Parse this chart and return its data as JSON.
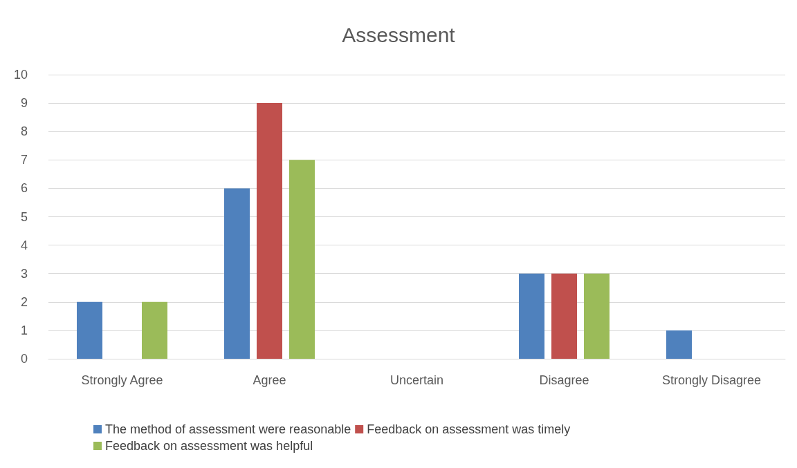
{
  "chart_data": {
    "type": "bar",
    "title": "Assessment",
    "categories": [
      "Strongly Agree",
      "Agree",
      "Uncertain",
      "Disagree",
      "Strongly Disagree"
    ],
    "series": [
      {
        "name": "The method of assessment were reasonable",
        "color": "#4f81bd",
        "values": [
          2,
          6,
          0,
          3,
          1
        ]
      },
      {
        "name": "Feedback on assessment was timely",
        "color": "#c0504d",
        "values": [
          0,
          9,
          0,
          3,
          0
        ]
      },
      {
        "name": "Feedback on assessment was helpful",
        "color": "#9bbb59",
        "values": [
          2,
          7,
          0,
          3,
          0
        ]
      }
    ],
    "ylim": [
      0,
      10
    ],
    "yticks": [
      0,
      1,
      2,
      3,
      4,
      5,
      6,
      7,
      8,
      9,
      10
    ],
    "grid": "y",
    "legend": "bottom"
  }
}
